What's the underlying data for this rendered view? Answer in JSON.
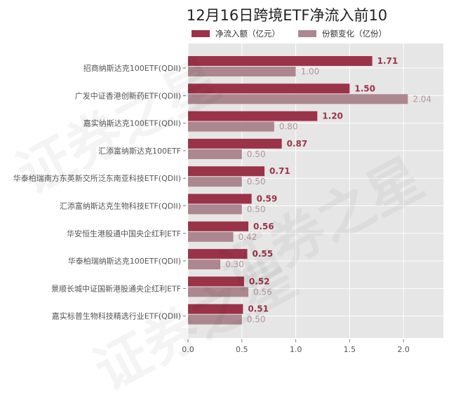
{
  "watermark": "证券之星",
  "chart_data": {
    "type": "bar",
    "orientation": "horizontal",
    "title": "12月16日跨境ETF净流入前10",
    "xlabel": "",
    "ylabel": "",
    "xlim": [
      0,
      2.37
    ],
    "xticks": [
      "0.0",
      "0.5",
      "1.0",
      "1.5",
      "2.0"
    ],
    "grid": true,
    "legend_position": "top",
    "categories": [
      "招商纳斯达克100ETF(QDII)",
      "广发中证香港创新药ETF(QDII)",
      "嘉实纳斯达克100ETF(QDII)",
      "汇添富纳斯达克100ETF",
      "华泰柏瑞南方东英新交所泛东南亚科技ETF(QDII)",
      "汇添富纳斯达克生物科技ETF(QDII)",
      "华安恒生港股通中国央企红利ETF",
      "华泰柏瑞纳斯达克100ETF(QDII)",
      "景顺长城中证国新港股通央企红利ETF",
      "嘉实标普生物科技精选行业ETF(QDII)"
    ],
    "series": [
      {
        "name": "净流入额（亿元）",
        "color": "#9b3348",
        "label_color": "#9b3348",
        "values": [
          1.71,
          1.5,
          1.2,
          0.87,
          0.71,
          0.59,
          0.56,
          0.55,
          0.52,
          0.51
        ],
        "labels": [
          "1.71",
          "1.50",
          "1.20",
          "0.87",
          "0.71",
          "0.59",
          "0.56",
          "0.55",
          "0.52",
          "0.51"
        ]
      },
      {
        "name": "份额变化（亿份）",
        "color": "#ad8790",
        "label_color": "#b3959c",
        "values": [
          1.0,
          2.04,
          0.8,
          0.5,
          0.5,
          0.5,
          0.42,
          0.3,
          0.56,
          0.5
        ],
        "labels": [
          "1.00",
          "2.04",
          "0.80",
          "0.50",
          "0.50",
          "0.50",
          "0.42",
          "0.30",
          "0.56",
          "0.50"
        ]
      }
    ]
  }
}
